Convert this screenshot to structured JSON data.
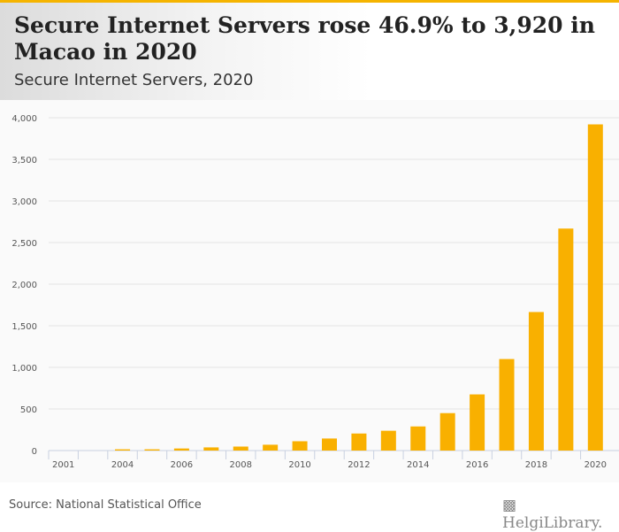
{
  "title": "Secure Internet Servers rose 46.9% to 3,920 in Macao in 2020",
  "subtitle": "Secure Internet Servers, 2020",
  "source": "Source: National Statistical Office",
  "logo": "HelgiLibrary.",
  "colors": {
    "bar": "#f9b000",
    "accent": "#f5b400"
  },
  "chart_data": {
    "type": "bar",
    "title": "Secure Internet Servers, 2020",
    "categories": [
      "2001",
      "2003",
      "2004",
      "2005",
      "2006",
      "2007",
      "2008",
      "2009",
      "2010",
      "2011",
      "2012",
      "2013",
      "2014",
      "2015",
      "2016",
      "2017",
      "2018",
      "2019",
      "2020"
    ],
    "tick_labels": [
      "2001",
      "",
      "2004",
      "",
      "2006",
      "",
      "2008",
      "",
      "2010",
      "",
      "2012",
      "",
      "2014",
      "",
      "2016",
      "",
      "2018",
      "",
      "2020"
    ],
    "values": [
      0,
      0,
      15,
      15,
      25,
      38,
      48,
      70,
      112,
      145,
      205,
      238,
      290,
      450,
      675,
      1100,
      1665,
      2668,
      3920
    ],
    "yticks": [
      "0",
      "500",
      "1,000",
      "1,500",
      "2,000",
      "2,500",
      "3,000",
      "3,500",
      "4,000"
    ],
    "ylim": [
      0,
      4000
    ],
    "grid": true
  }
}
